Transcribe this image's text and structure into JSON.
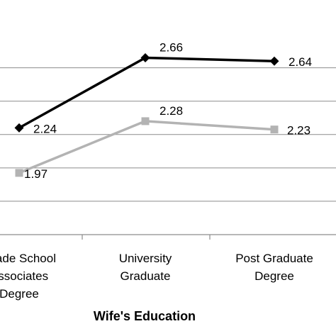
{
  "chart_data": {
    "type": "line",
    "xlabel": "Wife's Education",
    "categories": [
      [
        "Grade School",
        "Associates",
        "Degree"
      ],
      [
        "University",
        "Graduate"
      ],
      [
        "Post Graduate",
        "Degree"
      ]
    ],
    "ylim": [
      1.6,
      2.9
    ],
    "grid": true,
    "series": [
      {
        "values": [
          2.24,
          2.66,
          2.64
        ],
        "color": "#000000",
        "marker": "diamond",
        "labels": [
          "2.24",
          "2.66",
          "2.64"
        ]
      },
      {
        "values": [
          1.97,
          2.28,
          2.23
        ],
        "color": "#b3b3b3",
        "marker": "square",
        "labels": [
          "1.97",
          "2.28",
          "2.23"
        ]
      }
    ]
  }
}
